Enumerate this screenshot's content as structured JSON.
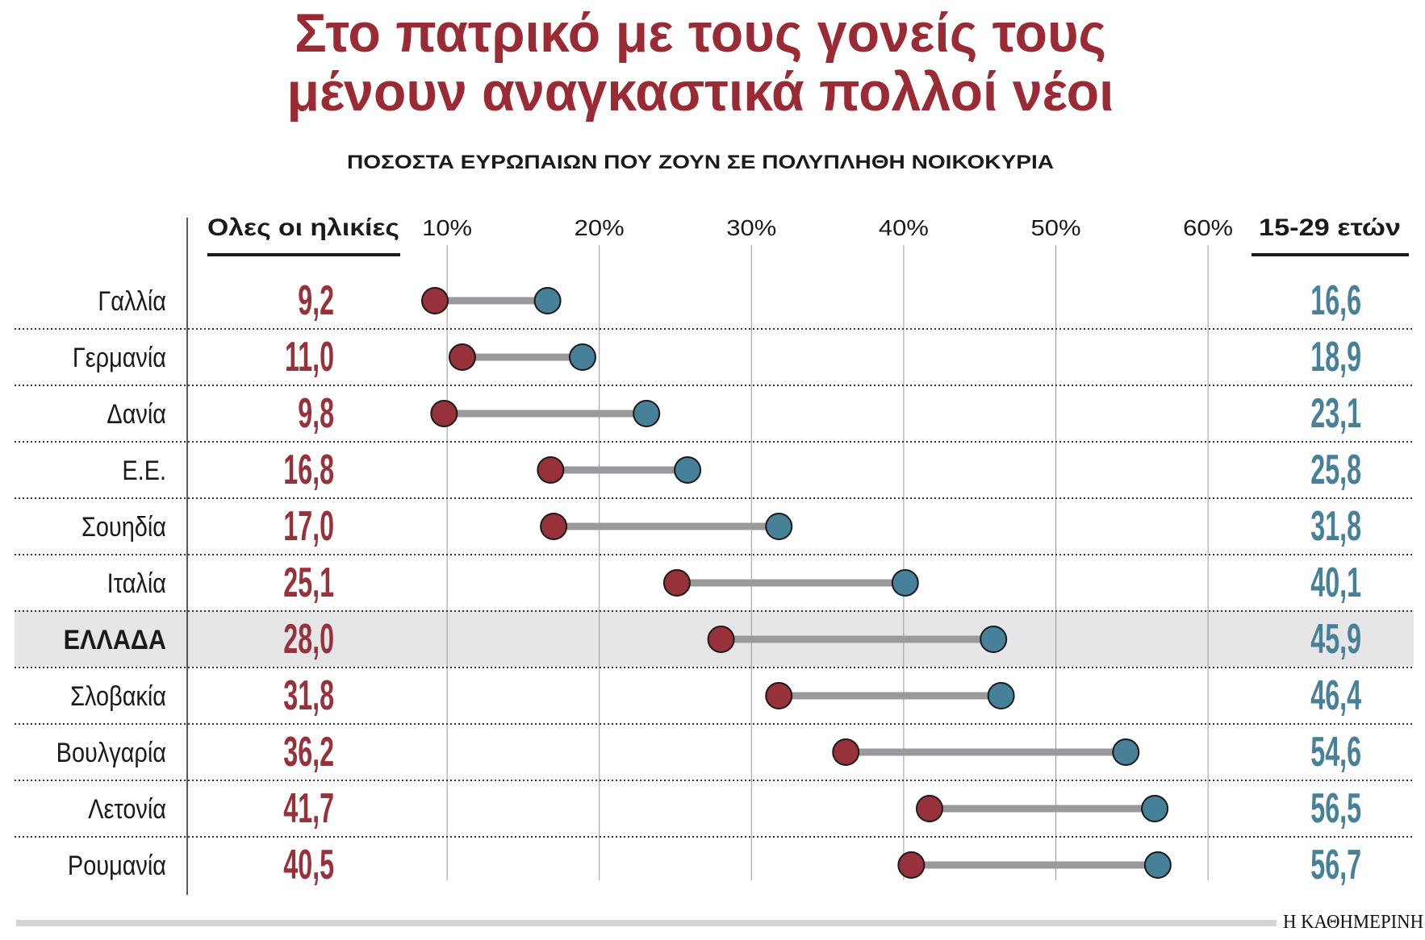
{
  "title_line1": "Στο πατρικό με τους γονείς τους",
  "title_line2": "μένουν αναγκαστικά πολλοί νέοι",
  "subtitle": "ΠΟΣΟΣΤΑ ΕΥΡΩΠΑΙΩΝ ΠΟΥ ΖΟΥΝ ΣΕ ΠΟΛΥΠΛΗΘΗ ΝΟΙΚΟΚΥΡΙΑ",
  "source_logo": "Η ΚΑΘΗΜΕΡΙΝΗ",
  "colors": {
    "title": "#9a2a33",
    "all_ages": "#97313a",
    "youth": "#478099",
    "connector": "#9a9a9e",
    "highlight": "#e6e6e8"
  },
  "chart_data": {
    "type": "dumbbell",
    "left_header": "Ολες οι ηλικίες",
    "right_header": "15-29 ετών",
    "x_ticks": [
      "10%",
      "20%",
      "30%",
      "40%",
      "50%",
      "60%"
    ],
    "x_tick_values": [
      10,
      20,
      30,
      40,
      50,
      60
    ],
    "grid": true,
    "highlight": "ΕΛΛΑΔΑ",
    "rows": [
      {
        "country": "Γαλλία",
        "all": 9.2,
        "youth": 16.6,
        "all_label": "9,2",
        "youth_label": "16,6"
      },
      {
        "country": "Γερμανία",
        "all": 11.0,
        "youth": 18.9,
        "all_label": "11,0",
        "youth_label": "18,9"
      },
      {
        "country": "Δανία",
        "all": 9.8,
        "youth": 23.1,
        "all_label": "9,8",
        "youth_label": "23,1"
      },
      {
        "country": "Ε.Ε.",
        "all": 16.8,
        "youth": 25.8,
        "all_label": "16,8",
        "youth_label": "25,8"
      },
      {
        "country": "Σουηδία",
        "all": 17.0,
        "youth": 31.8,
        "all_label": "17,0",
        "youth_label": "31,8"
      },
      {
        "country": "Ιταλία",
        "all": 25.1,
        "youth": 40.1,
        "all_label": "25,1",
        "youth_label": "40,1"
      },
      {
        "country": "ΕΛΛΑΔΑ",
        "all": 28.0,
        "youth": 45.9,
        "all_label": "28,0",
        "youth_label": "45,9"
      },
      {
        "country": "Σλοβακία",
        "all": 31.8,
        "youth": 46.4,
        "all_label": "31,8",
        "youth_label": "46,4"
      },
      {
        "country": "Βουλγαρία",
        "all": 36.2,
        "youth": 54.6,
        "all_label": "36,2",
        "youth_label": "54,6"
      },
      {
        "country": "Λετονία",
        "all": 41.7,
        "youth": 56.5,
        "all_label": "41,7",
        "youth_label": "56,5"
      },
      {
        "country": "Ρουμανία",
        "all": 40.5,
        "youth": 56.7,
        "all_label": "40,5",
        "youth_label": "56,7"
      }
    ]
  }
}
